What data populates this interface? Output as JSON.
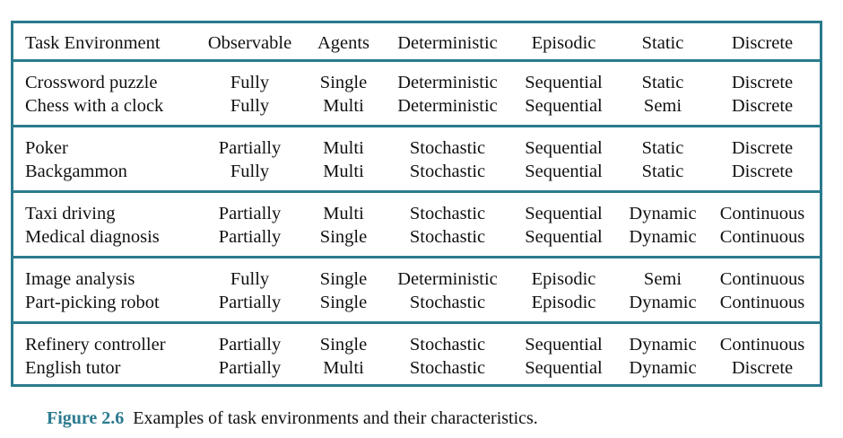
{
  "headers": [
    "Task Environment",
    "Observable",
    "Agents",
    "Deterministic",
    "Episodic",
    "Static",
    "Discrete"
  ],
  "groups": [
    [
      [
        "Crossword puzzle",
        "Fully",
        "Single",
        "Deterministic",
        "Sequential",
        "Static",
        "Discrete"
      ],
      [
        "Chess with a clock",
        "Fully",
        "Multi",
        "Deterministic",
        "Sequential",
        "Semi",
        "Discrete"
      ]
    ],
    [
      [
        "Poker",
        "Partially",
        "Multi",
        "Stochastic",
        "Sequential",
        "Static",
        "Discrete"
      ],
      [
        "Backgammon",
        "Fully",
        "Multi",
        "Stochastic",
        "Sequential",
        "Static",
        "Discrete"
      ]
    ],
    [
      [
        "Taxi driving",
        "Partially",
        "Multi",
        "Stochastic",
        "Sequential",
        "Dynamic",
        "Continuous"
      ],
      [
        "Medical diagnosis",
        "Partially",
        "Single",
        "Stochastic",
        "Sequential",
        "Dynamic",
        "Continuous"
      ]
    ],
    [
      [
        "Image analysis",
        "Fully",
        "Single",
        "Deterministic",
        "Episodic",
        "Semi",
        "Continuous"
      ],
      [
        "Part-picking robot",
        "Partially",
        "Single",
        "Stochastic",
        "Episodic",
        "Dynamic",
        "Continuous"
      ]
    ],
    [
      [
        "Refinery controller",
        "Partially",
        "Single",
        "Stochastic",
        "Sequential",
        "Dynamic",
        "Continuous"
      ],
      [
        "English tutor",
        "Partially",
        "Multi",
        "Stochastic",
        "Sequential",
        "Dynamic",
        "Discrete"
      ]
    ]
  ],
  "caption": {
    "label": "Figure 2.6",
    "text": "Examples of task environments and their characteristics."
  },
  "colors": {
    "accent": "#2b7a8e",
    "text": "#111111"
  }
}
